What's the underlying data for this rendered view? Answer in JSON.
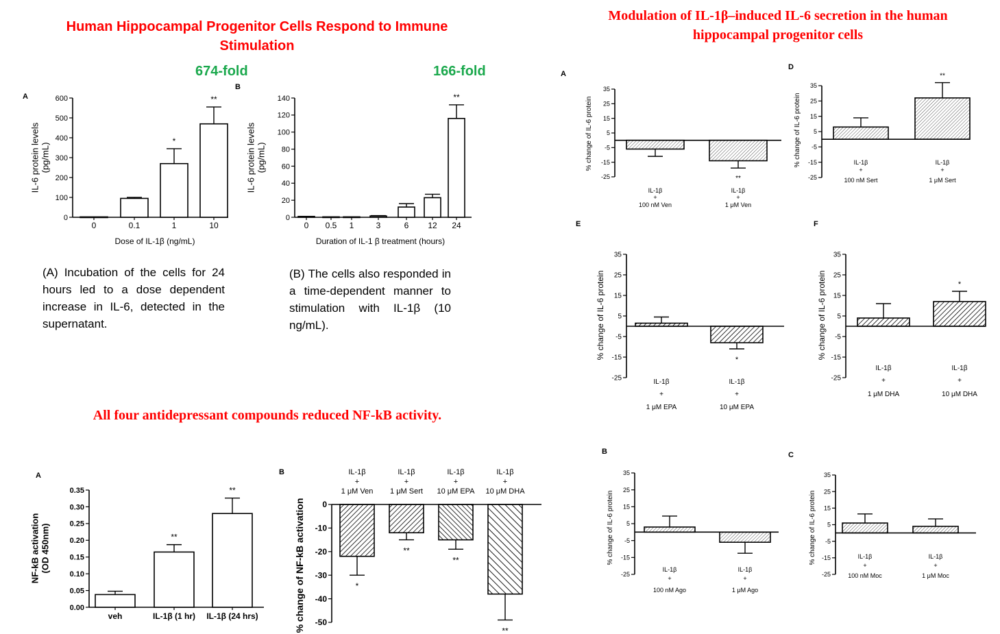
{
  "titles": {
    "top_left": "Human Hippocampal  Progenitor Cells Respond to Immune Stimulation",
    "top_right": "Modulation of IL-1β–induced IL-6 secretion in the human hippocampal progenitor cells",
    "bottom_left": "All  four antidepressant compounds reduced NF-kB activity."
  },
  "fold_labels": {
    "a": "674-fold",
    "b": "166-fold"
  },
  "captions": {
    "a": "(A) Incubation of the cells for 24 hours led to a dose dependent increase in IL-6, detected in the supernatant.",
    "b": "(B) The cells also responded in a time-dependent manner to stimulation with IL-1β (10 ng/mL)."
  },
  "colors": {
    "title_red": "#ff0000",
    "fold_green": "#1aa84c",
    "bar_fill": "#ffffff",
    "stroke": "#000000"
  },
  "chart_data": [
    {
      "id": "il6_dose",
      "panel": "A",
      "type": "bar",
      "categories": [
        "0",
        "0.1",
        "1",
        "10"
      ],
      "values": [
        2,
        95,
        270,
        470
      ],
      "errors": [
        0,
        5,
        75,
        85
      ],
      "sig": [
        "",
        "",
        "*",
        "**"
      ],
      "ylabel_lines": [
        "IL-6 protein levels",
        "(pg/mL)"
      ],
      "xlabel": "Dose of IL-1β (ng/mL)",
      "ylim": [
        0,
        600
      ],
      "yticks": [
        0,
        100,
        200,
        300,
        400,
        500,
        600
      ],
      "yticklabels": [
        "0",
        "100",
        "200",
        "300",
        "400",
        "500",
        "600"
      ]
    },
    {
      "id": "il6_time",
      "panel": "B",
      "type": "bar",
      "categories": [
        "0",
        "0.5",
        "1",
        "3",
        "6",
        "12",
        "24"
      ],
      "values": [
        1,
        0.5,
        0.5,
        1.5,
        12,
        23,
        116
      ],
      "errors": [
        0,
        0,
        0,
        0.5,
        4,
        4,
        16
      ],
      "sig": [
        "",
        "",
        "",
        "",
        "",
        "",
        "**"
      ],
      "ylabel_lines": [
        "IL-6 protein levels",
        "(pg/mL)"
      ],
      "xlabel": "Duration of IL-1 β treatment (hours)",
      "ylim": [
        0,
        140
      ],
      "yticks": [
        0,
        20,
        40,
        60,
        80,
        100,
        120,
        140
      ],
      "yticklabels": [
        "0",
        "20",
        "40",
        "60",
        "80",
        "100",
        "120",
        "140"
      ]
    },
    {
      "id": "nfkb_od",
      "panel": "A",
      "type": "bar",
      "categories": [
        "veh",
        "IL-1β (1 hr)",
        "IL-1β (24 hrs)"
      ],
      "values": [
        0.038,
        0.165,
        0.28
      ],
      "errors": [
        0.01,
        0.022,
        0.046
      ],
      "sig": [
        "",
        "**",
        "**"
      ],
      "ylabel_lines": [
        "NF-kB activation",
        "(OD 450nm)"
      ],
      "xlabel": "",
      "ylim": [
        0,
        0.35
      ],
      "yticks": [
        0,
        0.05,
        0.1,
        0.15,
        0.2,
        0.25,
        0.3,
        0.35
      ],
      "yticklabels": [
        "0.00",
        "0.05",
        "0.10",
        "0.15",
        "0.20",
        "0.25",
        "0.30",
        "0.35"
      ]
    },
    {
      "id": "nfkb_change",
      "panel": "B",
      "type": "bar",
      "categories": [
        [
          "IL-1β",
          "+",
          "1 μM Ven"
        ],
        [
          "IL-1β",
          "+",
          "1 μM Sert"
        ],
        [
          "IL-1β",
          "+",
          "10 μM EPA"
        ],
        [
          "IL-1β",
          "+",
          "10 μM DHA"
        ]
      ],
      "values": [
        -22,
        -12,
        -15,
        -38
      ],
      "errors": [
        8,
        3,
        4,
        11
      ],
      "sig": [
        "*",
        "**",
        "**",
        "**"
      ],
      "ylabel_lines": [
        "% change of NF-kB activation"
      ],
      "xlabel": "",
      "ylim": [
        -50,
        0
      ],
      "yticks": [
        0,
        -10,
        -20,
        -30,
        -40,
        -50
      ],
      "yticklabels": [
        "0",
        "-10",
        "-20",
        "-30",
        "-40",
        "-50"
      ]
    },
    {
      "id": "ven",
      "panel": "A",
      "type": "bar",
      "categories": [
        [
          "IL-1β",
          "+",
          "100 nM Ven"
        ],
        [
          "IL-1β",
          "+",
          "1 μM Ven"
        ]
      ],
      "values": [
        -6,
        -14
      ],
      "errors": [
        5,
        5
      ],
      "sig": [
        "",
        "**"
      ],
      "ylabel_lines": [
        "% change of IL-6 protein"
      ],
      "xlabel": "",
      "ylim": [
        -25,
        35
      ],
      "yticks": [
        35,
        25,
        15,
        5,
        -5,
        -15,
        -25
      ],
      "yticklabels": [
        "35",
        "25",
        "15",
        "5",
        "-5",
        "-15",
        "-25"
      ]
    },
    {
      "id": "sert",
      "panel": "D",
      "type": "bar",
      "categories": [
        [
          "IL-1β",
          "+",
          "100 nM Sert"
        ],
        [
          "IL-1β",
          "+",
          "1 μM Sert"
        ]
      ],
      "values": [
        8,
        27
      ],
      "errors": [
        6,
        10
      ],
      "sig": [
        "",
        "**"
      ],
      "ylabel_lines": [
        "% change of IL-6 protein"
      ],
      "xlabel": "",
      "ylim": [
        -25,
        35
      ],
      "yticks": [
        35,
        25,
        15,
        5,
        -5,
        -15,
        -25
      ],
      "yticklabels": [
        "35",
        "25",
        "15",
        "5",
        "-5",
        "-15",
        "-25"
      ]
    },
    {
      "id": "epa",
      "panel": "E",
      "type": "bar",
      "categories": [
        [
          "IL-1β",
          "+",
          "1 μM EPA"
        ],
        [
          "IL-1β",
          "+",
          "10 μM EPA"
        ]
      ],
      "values": [
        1.5,
        -8
      ],
      "errors": [
        3,
        3
      ],
      "sig": [
        "",
        "*"
      ],
      "ylabel_lines": [
        "% change of IL-6 protein"
      ],
      "xlabel": "",
      "ylim": [
        -25,
        35
      ],
      "yticks": [
        35,
        25,
        15,
        5,
        -5,
        -15,
        -25
      ],
      "yticklabels": [
        "35",
        "25",
        "15",
        "5",
        "-5",
        "-15",
        "-25"
      ]
    },
    {
      "id": "dha",
      "panel": "F",
      "type": "bar",
      "categories": [
        [
          "IL-1β",
          "+",
          "1 μM DHA"
        ],
        [
          "IL-1β",
          "+",
          "10 μM DHA"
        ]
      ],
      "values": [
        4,
        12
      ],
      "errors": [
        7,
        5
      ],
      "sig": [
        "",
        "*"
      ],
      "ylabel_lines": [
        "% change of IL-6 protein"
      ],
      "xlabel": "",
      "ylim": [
        -25,
        35
      ],
      "yticks": [
        35,
        25,
        15,
        5,
        -5,
        -15,
        -25
      ],
      "yticklabels": [
        "35",
        "25",
        "15",
        "5",
        "-5",
        "-15",
        "-25"
      ]
    },
    {
      "id": "ago",
      "panel": "B",
      "type": "bar",
      "categories": [
        [
          "IL-1β",
          "+",
          "100 nM Ago"
        ],
        [
          "IL-1β",
          "+",
          "1 μM Ago"
        ]
      ],
      "values": [
        3,
        -6
      ],
      "errors": [
        6.5,
        6.5
      ],
      "sig": [
        "",
        ""
      ],
      "ylabel_lines": [
        "% change of IL-6 protein"
      ],
      "xlabel": "",
      "ylim": [
        -25,
        35
      ],
      "yticks": [
        35,
        25,
        15,
        5,
        -5,
        -15,
        -25
      ],
      "yticklabels": [
        "35",
        "25",
        "15",
        "5",
        "-5",
        "-15",
        "-25"
      ]
    },
    {
      "id": "moc",
      "panel": "C",
      "type": "bar",
      "categories": [
        [
          "IL-1β",
          "+",
          "100 nM Moc"
        ],
        [
          "IL-1β",
          "+",
          "1 μM Moc"
        ]
      ],
      "values": [
        6,
        4
      ],
      "errors": [
        5.5,
        4.5
      ],
      "sig": [
        "",
        ""
      ],
      "ylabel_lines": [
        "% change of IL-6 protein"
      ],
      "xlabel": "",
      "ylim": [
        -25,
        35
      ],
      "yticks": [
        35,
        25,
        15,
        5,
        -5,
        -15,
        -25
      ],
      "yticklabels": [
        "35",
        "25",
        "15",
        "5",
        "-5",
        "-15",
        "-25"
      ]
    }
  ]
}
